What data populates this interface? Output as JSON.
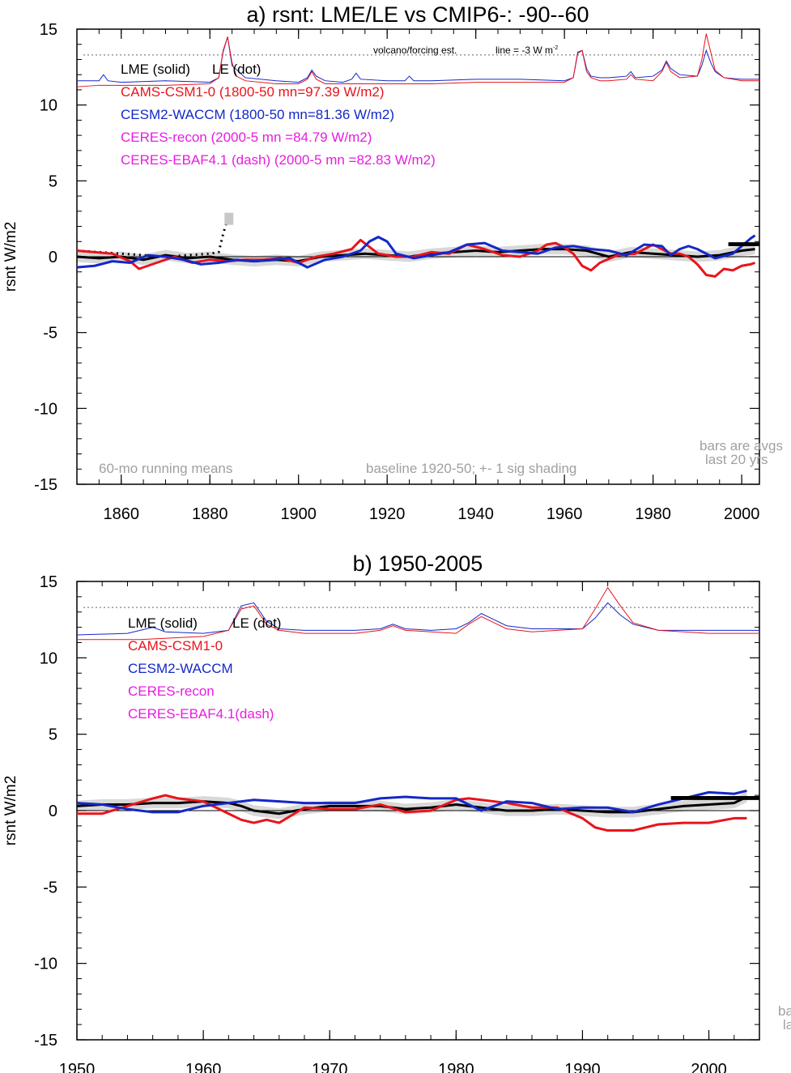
{
  "chart_data": [
    {
      "type": "line",
      "title": "a) rsnt: LME/LE vs CMIP6-: -90--60",
      "ylabel": "rsnt W/m2",
      "xlabel": "",
      "xlim": [
        1850,
        2004
      ],
      "ylim": [
        -15,
        15
      ],
      "xticks": [
        1860,
        1880,
        1900,
        1920,
        1940,
        1960,
        1980,
        2000
      ],
      "yticks": [
        15,
        10,
        5,
        0,
        -5,
        -10,
        -15
      ],
      "ref_line_y": 13.3,
      "legend": {
        "lme_le": {
          "lme": "LME (solid)",
          "le": "LE (dot)"
        },
        "entries": [
          {
            "text": "CAMS-CSM1-0 (1800-50 mn=97.39 W/m2)",
            "color": "#e8141c"
          },
          {
            "text": "CESM2-WACCM (1800-50 mn=81.36 W/m2)",
            "color": "#1428c8"
          },
          {
            "text": "CERES-recon (2000-5 mn =84.79 W/m2)",
            "color": "#e81ce0"
          },
          {
            "text": "CERES-EBAF4.1 (dash) (2000-5 mn =82.83 W/m2)",
            "color": "#e81ce0"
          }
        ]
      },
      "annotations": {
        "volcano": "volcano/forcing est.",
        "line_eq": "line = -3 W m",
        "line_eq_sup": "-2",
        "running": "60-mo running means",
        "baseline": "baseline 1920-50; +- 1 sig shading",
        "bars1": "bars are avgs",
        "bars2": "last 20 yrs"
      },
      "series": [
        {
          "name": "LME (solid)",
          "color": "#000000",
          "width": 3,
          "x": [
            1850,
            1855,
            1860,
            1865,
            1870,
            1875,
            1880,
            1885,
            1890,
            1895,
            1900,
            1905,
            1910,
            1915,
            1920,
            1925,
            1930,
            1935,
            1940,
            1945,
            1950,
            1955,
            1960,
            1965,
            1970,
            1975,
            1980,
            1985,
            1990,
            1995,
            2000,
            2003
          ],
          "y": [
            0.0,
            -0.1,
            0.0,
            -0.2,
            0.1,
            -0.1,
            0.0,
            -0.2,
            -0.3,
            -0.2,
            -0.3,
            0.0,
            0.1,
            0.2,
            0.1,
            0.0,
            0.2,
            0.3,
            0.4,
            0.3,
            0.4,
            0.5,
            0.5,
            0.4,
            0.0,
            0.3,
            0.2,
            0.1,
            0.0,
            0.1,
            0.4,
            0.5
          ]
        },
        {
          "name": "LE (dot)",
          "color": "#000000",
          "width": 3,
          "dash": "2,5",
          "x": [
            1850,
            1855,
            1860,
            1865,
            1870,
            1875,
            1880,
            1882,
            1883,
            1884,
            1885
          ],
          "y": [
            0.4,
            0.3,
            0.2,
            0.1,
            0.0,
            0.1,
            0.2,
            0.3,
            1.5,
            2.5,
            2.5
          ]
        },
        {
          "name": "CAMS-CSM1-0",
          "color": "#e8141c",
          "width": 3,
          "x": [
            1850,
            1854,
            1858,
            1862,
            1864,
            1868,
            1872,
            1876,
            1880,
            1884,
            1888,
            1892,
            1896,
            1900,
            1904,
            1908,
            1912,
            1914,
            1918,
            1922,
            1926,
            1930,
            1934,
            1938,
            1942,
            1946,
            1950,
            1954,
            1956,
            1958,
            1960,
            1962,
            1964,
            1966,
            1968,
            1972,
            1976,
            1980,
            1982,
            1984,
            1986,
            1988,
            1990,
            1992,
            1994,
            1996,
            1998,
            2000,
            2002,
            2003
          ],
          "y": [
            0.4,
            0.3,
            0.2,
            -0.3,
            -0.8,
            -0.4,
            0.0,
            -0.4,
            -0.2,
            -0.3,
            -0.2,
            -0.2,
            -0.1,
            -0.4,
            0.0,
            0.2,
            0.5,
            1.1,
            0.2,
            0.0,
            0.0,
            0.3,
            0.2,
            0.8,
            0.5,
            0.1,
            0.0,
            0.4,
            0.8,
            0.9,
            0.6,
            0.2,
            -0.6,
            -0.9,
            -0.4,
            0.1,
            0.2,
            0.8,
            0.5,
            0.2,
            0.2,
            0.0,
            -0.5,
            -1.2,
            -1.3,
            -0.8,
            -0.9,
            -0.6,
            -0.5,
            -0.4
          ]
        },
        {
          "name": "CESM2-WACCM",
          "color": "#1428c8",
          "width": 3,
          "x": [
            1850,
            1854,
            1858,
            1862,
            1866,
            1870,
            1874,
            1878,
            1882,
            1886,
            1890,
            1894,
            1898,
            1902,
            1906,
            1910,
            1914,
            1916,
            1918,
            1920,
            1922,
            1926,
            1930,
            1934,
            1938,
            1942,
            1946,
            1950,
            1954,
            1958,
            1962,
            1966,
            1970,
            1974,
            1978,
            1982,
            1984,
            1986,
            1988,
            1990,
            1994,
            1998,
            2002,
            2003
          ],
          "y": [
            -0.7,
            -0.6,
            -0.3,
            -0.4,
            0.1,
            0.0,
            -0.2,
            -0.5,
            -0.4,
            -0.2,
            -0.3,
            -0.2,
            -0.1,
            -0.7,
            -0.2,
            0.0,
            0.4,
            1.0,
            1.3,
            1.0,
            0.2,
            -0.1,
            0.1,
            0.3,
            0.8,
            0.9,
            0.4,
            0.3,
            0.2,
            0.6,
            0.7,
            0.5,
            0.4,
            0.1,
            0.8,
            0.7,
            0.1,
            0.5,
            0.7,
            0.5,
            -0.1,
            0.2,
            1.2,
            1.4
          ]
        }
      ],
      "forcing": [
        {
          "name": "CESM2-WACCM",
          "color": "#1428c8",
          "x": [
            1850,
            1855,
            1856,
            1857,
            1860,
            1870,
            1880,
            1882,
            1883,
            1884,
            1885,
            1888,
            1895,
            1900,
            1902,
            1903,
            1904,
            1906,
            1910,
            1912,
            1913,
            1914,
            1920,
            1924,
            1925,
            1926,
            1930,
            1940,
            1950,
            1960,
            1962,
            1963,
            1964,
            1965,
            1966,
            1968,
            1970,
            1974,
            1975,
            1976,
            1980,
            1982,
            1983,
            1984,
            1986,
            1990,
            1991,
            1992,
            1993,
            1994,
            1996,
            2000,
            2004
          ],
          "y": [
            11.6,
            11.6,
            12.0,
            11.6,
            11.5,
            11.6,
            11.5,
            11.8,
            13.5,
            14.5,
            12.6,
            11.8,
            11.6,
            11.5,
            11.8,
            12.3,
            11.9,
            11.6,
            11.5,
            11.7,
            12.1,
            11.7,
            11.6,
            11.6,
            11.9,
            11.6,
            11.6,
            11.7,
            11.7,
            11.6,
            11.8,
            13.4,
            13.6,
            12.4,
            11.9,
            11.8,
            11.8,
            11.9,
            12.2,
            11.8,
            11.9,
            12.3,
            12.9,
            12.4,
            12.0,
            11.9,
            12.6,
            13.6,
            12.8,
            12.2,
            11.8,
            11.7,
            11.7
          ]
        },
        {
          "name": "CAMS-CSM1-0",
          "color": "#e8141c",
          "x": [
            1850,
            1855,
            1860,
            1870,
            1880,
            1882,
            1883,
            1884,
            1885,
            1886,
            1888,
            1895,
            1900,
            1902,
            1903,
            1904,
            1906,
            1910,
            1920,
            1930,
            1940,
            1950,
            1960,
            1962,
            1963,
            1964,
            1965,
            1966,
            1968,
            1970,
            1974,
            1975,
            1976,
            1980,
            1982,
            1983,
            1984,
            1986,
            1990,
            1991,
            1992,
            1993,
            1994,
            1996,
            2000,
            2004
          ],
          "y": [
            11.2,
            11.3,
            11.3,
            11.3,
            11.4,
            11.8,
            13.6,
            14.5,
            12.8,
            11.9,
            11.6,
            11.4,
            11.4,
            11.7,
            12.2,
            11.7,
            11.4,
            11.4,
            11.4,
            11.4,
            11.5,
            11.5,
            11.5,
            11.8,
            13.5,
            13.6,
            12.2,
            11.8,
            11.6,
            11.6,
            11.7,
            12.0,
            11.7,
            11.6,
            12.2,
            12.8,
            12.2,
            11.8,
            11.9,
            13.0,
            14.7,
            13.5,
            12.3,
            11.8,
            11.6,
            11.6
          ]
        }
      ],
      "avg_bars": [
        {
          "color": "#000000",
          "x": [
            1997,
            2004
          ],
          "y": 0.8
        },
        {
          "color": "#000000",
          "x": [
            1997,
            2004
          ],
          "y": 0.85
        }
      ]
    },
    {
      "type": "line",
      "title": "b) 1950-2005",
      "ylabel": "rsnt W/m2",
      "xlabel": "",
      "xlim": [
        1950,
        2004
      ],
      "ylim": [
        -15,
        15
      ],
      "xticks": [
        1950,
        1960,
        1970,
        1980,
        1990,
        2000
      ],
      "yticks": [
        15,
        10,
        5,
        0,
        -5,
        -10,
        -15
      ],
      "ref_line_y": 13.3,
      "legend": {
        "lme_le": {
          "lme": "LME (solid)",
          "le": "LE (dot)"
        },
        "entries": [
          {
            "text": "CAMS-CSM1-0",
            "color": "#e8141c"
          },
          {
            "text": "CESM2-WACCM",
            "color": "#1428c8"
          },
          {
            "text": "CERES-recon",
            "color": "#e81ce0"
          },
          {
            "text": "CERES-EBAF4.1(dash)",
            "color": "#e81ce0"
          }
        ]
      },
      "annotations": {
        "bars1": "ba",
        "bars2": "la"
      },
      "series": [
        {
          "name": "LME (solid)",
          "color": "#000000",
          "width": 3,
          "x": [
            1950,
            1952,
            1954,
            1956,
            1958,
            1960,
            1962,
            1963,
            1964,
            1966,
            1968,
            1970,
            1972,
            1974,
            1976,
            1978,
            1980,
            1982,
            1984,
            1986,
            1988,
            1990,
            1992,
            1994,
            1996,
            1998,
            2000,
            2002,
            2003
          ],
          "y": [
            0.3,
            0.4,
            0.4,
            0.5,
            0.5,
            0.6,
            0.5,
            0.3,
            0.0,
            -0.2,
            0.1,
            0.3,
            0.3,
            0.3,
            0.1,
            0.2,
            0.4,
            0.2,
            0.0,
            0.0,
            0.1,
            0.0,
            -0.1,
            -0.1,
            0.1,
            0.3,
            0.4,
            0.5,
            0.9
          ]
        },
        {
          "name": "CAMS-CSM1-0",
          "color": "#e8141c",
          "width": 3,
          "x": [
            1950,
            1952,
            1954,
            1956,
            1957,
            1958,
            1960,
            1962,
            1963,
            1964,
            1965,
            1966,
            1968,
            1970,
            1972,
            1974,
            1976,
            1978,
            1980,
            1981,
            1982,
            1984,
            1986,
            1988,
            1990,
            1991,
            1992,
            1994,
            1996,
            1998,
            2000,
            2002,
            2003
          ],
          "y": [
            -0.2,
            -0.2,
            0.3,
            0.8,
            1.0,
            0.8,
            0.6,
            -0.2,
            -0.6,
            -0.8,
            -0.6,
            -0.8,
            0.2,
            0.1,
            0.1,
            0.4,
            -0.1,
            0.0,
            0.7,
            0.8,
            0.7,
            0.5,
            0.2,
            0.2,
            -0.5,
            -1.1,
            -1.3,
            -1.3,
            -0.9,
            -0.8,
            -0.8,
            -0.5,
            -0.5
          ]
        },
        {
          "name": "CESM2-WACCM",
          "color": "#1428c8",
          "width": 3,
          "x": [
            1950,
            1952,
            1954,
            1956,
            1958,
            1960,
            1962,
            1964,
            1966,
            1968,
            1970,
            1972,
            1974,
            1976,
            1978,
            1980,
            1982,
            1984,
            1986,
            1988,
            1990,
            1992,
            1994,
            1996,
            1998,
            2000,
            2002,
            2003
          ],
          "y": [
            0.5,
            0.4,
            0.1,
            -0.1,
            -0.1,
            0.3,
            0.5,
            0.7,
            0.6,
            0.5,
            0.5,
            0.5,
            0.8,
            0.9,
            0.8,
            0.8,
            0.0,
            0.6,
            0.5,
            0.1,
            0.2,
            0.2,
            -0.1,
            0.4,
            0.8,
            1.2,
            1.1,
            1.3
          ]
        }
      ],
      "forcing": [
        {
          "name": "CESM2-WACCM",
          "color": "#1428c8",
          "x": [
            1950,
            1954,
            1955,
            1956,
            1957,
            1960,
            1962,
            1963,
            1964,
            1965,
            1966,
            1968,
            1972,
            1974,
            1975,
            1976,
            1978,
            1980,
            1981,
            1982,
            1983,
            1984,
            1986,
            1990,
            1991,
            1992,
            1993,
            1994,
            1996,
            2000,
            2004
          ],
          "y": [
            11.5,
            11.6,
            11.8,
            12.0,
            11.7,
            11.6,
            11.8,
            13.4,
            13.6,
            12.4,
            11.9,
            11.8,
            11.8,
            11.9,
            12.2,
            11.9,
            11.8,
            11.9,
            12.3,
            12.9,
            12.5,
            12.1,
            11.9,
            11.9,
            12.6,
            13.6,
            12.8,
            12.2,
            11.8,
            11.8,
            11.8
          ]
        },
        {
          "name": "CAMS-CSM1-0",
          "color": "#e8141c",
          "x": [
            1950,
            1955,
            1960,
            1962,
            1963,
            1964,
            1965,
            1966,
            1968,
            1972,
            1974,
            1975,
            1976,
            1980,
            1981,
            1982,
            1983,
            1984,
            1986,
            1990,
            1991,
            1992,
            1993,
            1994,
            1996,
            2000,
            2004
          ],
          "y": [
            11.2,
            11.2,
            11.4,
            11.8,
            13.2,
            13.4,
            12.2,
            11.8,
            11.6,
            11.6,
            11.8,
            12.1,
            11.8,
            11.6,
            12.2,
            12.7,
            12.3,
            11.9,
            11.7,
            11.9,
            13.2,
            14.6,
            13.4,
            12.3,
            11.8,
            11.6,
            11.6
          ]
        }
      ],
      "avg_bars": [
        {
          "color": "#000000",
          "x": [
            1997,
            2004
          ],
          "y": 0.8
        },
        {
          "color": "#000000",
          "x": [
            1997,
            2004
          ],
          "y": 0.85
        }
      ]
    }
  ]
}
